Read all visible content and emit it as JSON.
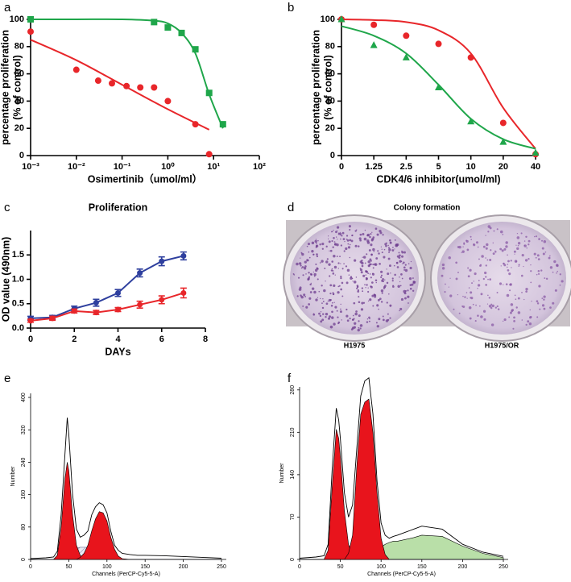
{
  "chart_data": [
    {
      "type": "scatter",
      "label": "a",
      "ylabel": [
        "percentage proliferation",
        "(% of control)"
      ],
      "xlabel": "Osimertinib（umol/ml）",
      "xlog": true,
      "xlim": [
        0.001,
        100
      ],
      "xticks": [
        {
          "value": 0.001,
          "label": "10⁻³"
        },
        {
          "value": 0.01,
          "label": "10⁻²"
        },
        {
          "value": 0.1,
          "label": "10⁻¹"
        },
        {
          "value": 1,
          "label": "10⁰"
        },
        {
          "value": 10,
          "label": "10¹"
        },
        {
          "value": 100,
          "label": "10²"
        }
      ],
      "ylim": [
        0,
        100
      ],
      "yticks": [
        0,
        20,
        40,
        60,
        80,
        100
      ],
      "series": [
        {
          "color": "#1fa64a",
          "marker": "square",
          "x": [
            0.001,
            0.5,
            1,
            2,
            4,
            8,
            16
          ],
          "values": [
            100,
            98,
            94,
            90,
            78,
            46,
            23
          ],
          "fit_x": [
            0.001,
            0.01,
            0.1,
            0.5,
            1,
            2,
            4,
            8,
            16
          ],
          "fit": [
            100,
            100,
            100,
            99,
            97,
            90,
            75,
            45,
            20
          ]
        },
        {
          "color": "#e8262a",
          "marker": "circle",
          "x": [
            0.001,
            0.01,
            0.03,
            0.06,
            0.125,
            0.25,
            0.5,
            1,
            4,
            8
          ],
          "values": [
            91,
            63,
            55,
            53,
            51,
            50,
            50,
            40,
            23,
            1
          ],
          "fit_x": [
            0.001,
            0.01,
            0.1,
            1,
            8
          ],
          "fit": [
            85,
            70,
            52,
            34,
            19
          ]
        }
      ]
    },
    {
      "type": "scatter",
      "label": "b",
      "ylabel": [
        "percentage proliferation",
        "(% of control)"
      ],
      "xlabel": "CDK4/6 inhibitor(umol/ml)",
      "categories": [
        "0",
        "1.25",
        "2.5",
        "5",
        "10",
        "20",
        "40"
      ],
      "ylim": [
        0,
        100
      ],
      "yticks": [
        0,
        20,
        40,
        60,
        80,
        100
      ],
      "series": [
        {
          "color": "#e8262a",
          "marker": "circle",
          "values": [
            100,
            96,
            88,
            82,
            72,
            24,
            1
          ],
          "fit": [
            100,
            99.5,
            98,
            92,
            75,
            35,
            5
          ]
        },
        {
          "color": "#1fa64a",
          "marker": "triangle",
          "values": [
            100,
            81,
            72,
            50,
            25,
            10,
            2
          ],
          "fit": [
            95,
            88,
            75,
            52,
            27,
            12,
            5
          ]
        }
      ]
    },
    {
      "type": "line",
      "label": "c",
      "title": "Proliferation",
      "ylabel": "OD value (490nm)",
      "xlabel": "DAYs",
      "x": [
        0,
        1,
        2,
        3,
        4,
        5,
        6,
        7
      ],
      "xlim": [
        0,
        8
      ],
      "xticks": [
        0,
        2,
        4,
        6,
        8
      ],
      "ylim": [
        0,
        2
      ],
      "yticks": [
        {
          "value": 0,
          "label": "0.0"
        },
        {
          "value": 0.5,
          "label": "0.5"
        },
        {
          "value": 1,
          "label": "1.0"
        },
        {
          "value": 1.5,
          "label": "1.5"
        }
      ],
      "series": [
        {
          "color": "#2e3f9e",
          "values": [
            0.2,
            0.22,
            0.4,
            0.52,
            0.72,
            1.13,
            1.37,
            1.48
          ],
          "errors": [
            0.04,
            0.04,
            0.05,
            0.07,
            0.07,
            0.08,
            0.09,
            0.08
          ]
        },
        {
          "color": "#e8262a",
          "values": [
            0.15,
            0.2,
            0.35,
            0.32,
            0.38,
            0.48,
            0.58,
            0.72
          ],
          "errors": [
            0.03,
            0.04,
            0.04,
            0.04,
            0.04,
            0.07,
            0.08,
            0.1
          ]
        }
      ]
    },
    {
      "type": "area",
      "label": "e",
      "ylabel": "Number",
      "xlabel": "Channels (PerCP-Cy5-5-A)",
      "x": [
        0,
        10,
        20,
        30,
        35,
        40,
        45,
        48,
        50,
        55,
        60,
        65,
        70,
        75,
        80,
        85,
        90,
        95,
        100,
        105,
        110,
        115,
        120,
        130,
        140,
        150,
        175,
        200,
        225,
        250
      ],
      "xlim": [
        0,
        250
      ],
      "xticks": [
        0,
        50,
        100,
        150,
        200,
        250
      ],
      "ylim": [
        0,
        410
      ],
      "yticks": [
        0,
        80,
        160,
        240,
        320,
        400
      ],
      "series": [
        {
          "style": "hatch",
          "color": "#6a6a90",
          "values": [
            0,
            0,
            0,
            0,
            0,
            5,
            15,
            20,
            22,
            25,
            28,
            30,
            30,
            30,
            28,
            26,
            24,
            20,
            15,
            10,
            5,
            2,
            0,
            0,
            0,
            0,
            0,
            0,
            0,
            0
          ]
        },
        {
          "style": "fill",
          "color": "#e8141c",
          "values": [
            0,
            0,
            0,
            0,
            10,
            80,
            200,
            240,
            220,
            110,
            35,
            10,
            2,
            0,
            0,
            0,
            0,
            0,
            0,
            0,
            0,
            0,
            0,
            0,
            0,
            0,
            0,
            0,
            0,
            0
          ]
        },
        {
          "style": "fill",
          "color": "#e8141c",
          "values": [
            0,
            0,
            0,
            0,
            0,
            0,
            0,
            0,
            0,
            0,
            0,
            5,
            15,
            35,
            70,
            100,
            118,
            115,
            95,
            55,
            25,
            8,
            2,
            0,
            0,
            0,
            0,
            0,
            0,
            0
          ]
        },
        {
          "style": "line",
          "color": "#000000",
          "values": [
            2,
            3,
            4,
            6,
            20,
            110,
            260,
            350,
            310,
            160,
            75,
            55,
            60,
            70,
            110,
            130,
            140,
            135,
            115,
            70,
            35,
            22,
            15,
            12,
            10,
            10,
            9,
            7,
            5,
            3
          ]
        }
      ]
    },
    {
      "type": "area",
      "label": "f",
      "ylabel": "Number",
      "xlabel": "Channels (PerCP-Cy5-5-A)",
      "x": [
        0,
        10,
        20,
        30,
        35,
        40,
        45,
        48,
        50,
        55,
        60,
        65,
        70,
        75,
        80,
        85,
        90,
        95,
        100,
        105,
        110,
        115,
        120,
        130,
        140,
        150,
        175,
        200,
        225,
        250
      ],
      "xlim": [
        0,
        250
      ],
      "xticks": [
        0,
        50,
        100,
        150,
        200,
        250
      ],
      "ylim": [
        0,
        285
      ],
      "yticks": [
        0,
        70,
        140,
        210,
        280
      ],
      "series": [
        {
          "style": "fill",
          "color": "#b9dfa8",
          "values": [
            0,
            0,
            0,
            0,
            0,
            0,
            0,
            0,
            0,
            0,
            0,
            0,
            0,
            0,
            0,
            2,
            5,
            10,
            20,
            25,
            28,
            30,
            30,
            33,
            36,
            40,
            38,
            22,
            10,
            3
          ]
        },
        {
          "style": "hatch",
          "color": "#6a6a90",
          "values": [
            0,
            0,
            0,
            0,
            0,
            5,
            12,
            15,
            18,
            20,
            22,
            22,
            22,
            20,
            18,
            15,
            12,
            8,
            4,
            0,
            0,
            0,
            0,
            0,
            0,
            0,
            0,
            0,
            0,
            0
          ]
        },
        {
          "style": "fill",
          "color": "#e8141c",
          "values": [
            0,
            0,
            0,
            0,
            15,
            120,
            215,
            200,
            170,
            80,
            25,
            5,
            0,
            0,
            0,
            0,
            0,
            0,
            0,
            0,
            0,
            0,
            0,
            0,
            0,
            0,
            0,
            0,
            0,
            0
          ]
        },
        {
          "style": "fill",
          "color": "#e8141c",
          "values": [
            0,
            0,
            0,
            0,
            0,
            0,
            0,
            0,
            0,
            0,
            10,
            40,
            150,
            240,
            260,
            265,
            210,
            110,
            35,
            8,
            0,
            0,
            0,
            0,
            0,
            0,
            0,
            0,
            0,
            0
          ]
        },
        {
          "style": "line",
          "color": "#000000",
          "values": [
            2,
            3,
            4,
            6,
            25,
            150,
            250,
            230,
            200,
            110,
            70,
            90,
            180,
            270,
            295,
            300,
            240,
            130,
            60,
            40,
            35,
            38,
            40,
            45,
            50,
            55,
            50,
            25,
            12,
            5
          ]
        }
      ]
    }
  ],
  "photo": {
    "label": "d",
    "title": "Colony formation",
    "captions": [
      "H1975",
      "H1975/OR"
    ]
  }
}
